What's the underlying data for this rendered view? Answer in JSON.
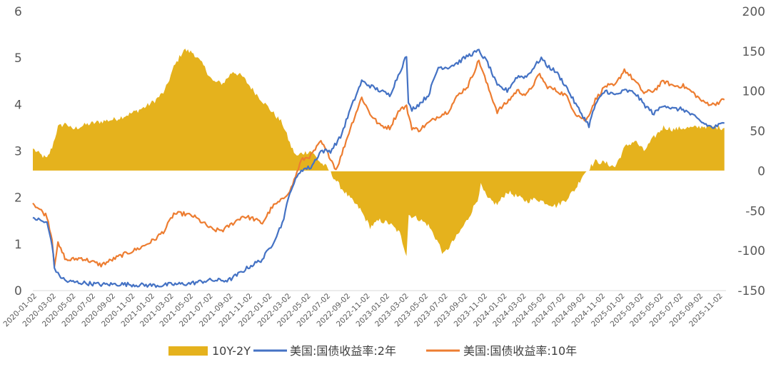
{
  "chart_data": {
    "type": "line",
    "left_axis": {
      "ticks": [
        "0",
        "1",
        "2",
        "3",
        "4",
        "5",
        "6"
      ],
      "ylim": [
        0,
        6
      ]
    },
    "right_axis": {
      "ticks": [
        "-150",
        "-100",
        "-50",
        "0",
        "50",
        "100",
        "150",
        "200"
      ],
      "ylim": [
        -150,
        200
      ]
    },
    "x_ticks": [
      "2020-01-02",
      "2020-03-02",
      "2020-05-02",
      "2020-07-02",
      "2020-09-02",
      "2020-11-02",
      "2021-01-02",
      "2021-03-02",
      "2021-05-02",
      "2021-07-02",
      "2021-09-02",
      "2021-11-02",
      "2022-01-02",
      "2022-03-02",
      "2022-05-02",
      "2022-07-02",
      "2022-09-02",
      "2022-11-02",
      "2023-01-02",
      "2023-03-02",
      "2023-05-02",
      "2023-07-02",
      "2023-09-02",
      "2023-11-02",
      "2024-01-02",
      "2024-03-02",
      "2024-05-02",
      "2024-07-02",
      "2024-09-02",
      "2024-11-02",
      "2025-01-02",
      "2025-03-02",
      "2025-05-02",
      "2025-07-02",
      "2025-09-02",
      "2025-11-02"
    ],
    "series": [
      {
        "name": "10Y-2Y",
        "type": "area",
        "axis": "right",
        "color": "#E5B21D",
        "x": [
          "2020-01-02",
          "2020-01-20",
          "2020-02-15",
          "2020-03-02",
          "2020-03-20",
          "2020-04-15",
          "2020-05-02",
          "2020-06-15",
          "2020-08-01",
          "2020-09-15",
          "2020-11-02",
          "2020-12-15",
          "2021-01-15",
          "2021-02-15",
          "2021-03-15",
          "2021-04-15",
          "2021-05-15",
          "2021-06-15",
          "2021-07-15",
          "2021-08-15",
          "2021-09-15",
          "2021-10-15",
          "2021-11-15",
          "2021-12-15",
          "2022-01-15",
          "2022-02-15",
          "2022-03-15",
          "2022-04-01",
          "2022-04-15",
          "2022-05-15",
          "2022-06-15",
          "2022-07-02",
          "2022-07-20",
          "2022-08-15",
          "2022-09-15",
          "2022-10-15",
          "2022-11-15",
          "2022-12-15",
          "2023-01-15",
          "2023-02-15",
          "2023-03-08",
          "2023-03-15",
          "2023-04-15",
          "2023-05-15",
          "2023-06-15",
          "2023-07-01",
          "2023-08-15",
          "2023-09-15",
          "2023-10-15",
          "2023-10-25",
          "2023-11-15",
          "2023-12-15",
          "2024-01-15",
          "2024-02-15",
          "2024-03-15",
          "2024-04-15",
          "2024-05-15",
          "2024-06-15",
          "2024-07-15",
          "2024-08-15",
          "2024-09-06",
          "2024-10-15",
          "2024-11-15",
          "2024-12-15",
          "2025-01-15",
          "2025-02-15",
          "2025-03-15",
          "2025-04-15",
          "2025-05-15",
          "2025-06-15",
          "2025-07-15",
          "2025-08-15",
          "2025-09-15",
          "2025-10-15",
          "2025-11-20"
        ],
        "y": [
          28,
          22,
          15,
          30,
          55,
          60,
          52,
          58,
          62,
          65,
          72,
          80,
          88,
          100,
          130,
          152,
          148,
          132,
          112,
          110,
          125,
          118,
          102,
          88,
          74,
          60,
          30,
          18,
          22,
          25,
          10,
          5,
          -5,
          -20,
          -35,
          -48,
          -70,
          -62,
          -66,
          -78,
          -105,
          -55,
          -60,
          -68,
          -90,
          -105,
          -80,
          -60,
          -35,
          -18,
          -35,
          -42,
          -26,
          -32,
          -38,
          -35,
          -40,
          -44,
          -36,
          -22,
          -5,
          12,
          10,
          5,
          30,
          38,
          25,
          42,
          55,
          52,
          54,
          54,
          56,
          55,
          54
        ]
      },
      {
        "name": "美国:国债收益率:2年",
        "type": "line",
        "axis": "left",
        "color": "#4472C4",
        "x": [
          "2020-01-02",
          "2020-02-15",
          "2020-03-02",
          "2020-03-09",
          "2020-03-20",
          "2020-04-15",
          "2020-06-01",
          "2020-08-01",
          "2020-10-01",
          "2020-12-01",
          "2021-02-01",
          "2021-03-02",
          "2021-05-01",
          "2021-07-01",
          "2021-09-01",
          "2021-10-01",
          "2021-11-01",
          "2021-12-15",
          "2022-01-15",
          "2022-02-15",
          "2022-03-15",
          "2022-04-15",
          "2022-05-15",
          "2022-06-15",
          "2022-07-15",
          "2022-08-15",
          "2022-09-15",
          "2022-10-20",
          "2022-11-15",
          "2022-12-15",
          "2023-01-15",
          "2023-02-15",
          "2023-03-08",
          "2023-03-14",
          "2023-03-25",
          "2023-04-15",
          "2023-05-15",
          "2023-06-15",
          "2023-07-15",
          "2023-08-15",
          "2023-09-15",
          "2023-10-19",
          "2023-11-15",
          "2023-12-15",
          "2024-01-15",
          "2024-02-15",
          "2024-03-15",
          "2024-04-30",
          "2024-05-15",
          "2024-06-15",
          "2024-07-15",
          "2024-08-15",
          "2024-09-25",
          "2024-10-15",
          "2024-11-15",
          "2024-12-15",
          "2025-01-15",
          "2025-02-15",
          "2025-03-15",
          "2025-04-15",
          "2025-05-15",
          "2025-06-15",
          "2025-07-15",
          "2025-08-15",
          "2025-09-15",
          "2025-10-15",
          "2025-11-20"
        ],
        "y": [
          1.57,
          1.45,
          1.0,
          0.5,
          0.35,
          0.2,
          0.17,
          0.13,
          0.14,
          0.12,
          0.11,
          0.13,
          0.15,
          0.22,
          0.22,
          0.35,
          0.5,
          0.67,
          1.0,
          1.45,
          2.2,
          2.6,
          2.65,
          3.0,
          3.0,
          3.3,
          3.9,
          4.5,
          4.4,
          4.3,
          4.2,
          4.7,
          5.05,
          4.0,
          3.9,
          4.0,
          4.2,
          4.8,
          4.8,
          4.9,
          5.05,
          5.15,
          4.9,
          4.4,
          4.3,
          4.6,
          4.6,
          5.0,
          4.85,
          4.7,
          4.4,
          4.0,
          3.55,
          4.0,
          4.3,
          4.2,
          4.3,
          4.25,
          4.0,
          3.8,
          4.0,
          3.9,
          3.9,
          3.75,
          3.6,
          3.5,
          3.6
        ]
      },
      {
        "name": "美国:国债收益率:10年",
        "type": "line",
        "axis": "left",
        "color": "#ED7D31",
        "x": [
          "2020-01-02",
          "2020-02-15",
          "2020-03-02",
          "2020-03-09",
          "2020-03-20",
          "2020-04-15",
          "2020-06-01",
          "2020-08-01",
          "2020-10-01",
          "2020-12-01",
          "2021-01-15",
          "2021-02-15",
          "2021-03-15",
          "2021-04-15",
          "2021-05-15",
          "2021-06-15",
          "2021-07-15",
          "2021-08-15",
          "2021-09-15",
          "2021-10-15",
          "2021-11-15",
          "2021-12-15",
          "2022-01-15",
          "2022-02-15",
          "2022-03-15",
          "2022-04-15",
          "2022-05-15",
          "2022-06-15",
          "2022-07-15",
          "2022-08-01",
          "2022-08-15",
          "2022-09-15",
          "2022-10-20",
          "2022-11-15",
          "2022-12-15",
          "2023-01-15",
          "2023-02-15",
          "2023-03-08",
          "2023-03-25",
          "2023-04-15",
          "2023-05-15",
          "2023-06-15",
          "2023-07-15",
          "2023-08-15",
          "2023-09-15",
          "2023-10-19",
          "2023-11-15",
          "2023-12-15",
          "2024-01-15",
          "2024-02-15",
          "2024-03-15",
          "2024-04-25",
          "2024-05-15",
          "2024-06-15",
          "2024-07-15",
          "2024-08-15",
          "2024-09-16",
          "2024-10-15",
          "2024-11-15",
          "2024-12-15",
          "2025-01-13",
          "2025-02-15",
          "2025-03-15",
          "2025-04-15",
          "2025-05-15",
          "2025-06-15",
          "2025-07-15",
          "2025-08-15",
          "2025-09-15",
          "2025-10-15",
          "2025-11-20"
        ],
        "y": [
          1.88,
          1.6,
          1.1,
          0.55,
          1.0,
          0.65,
          0.7,
          0.55,
          0.75,
          0.92,
          1.1,
          1.3,
          1.65,
          1.65,
          1.6,
          1.45,
          1.3,
          1.3,
          1.45,
          1.6,
          1.55,
          1.45,
          1.8,
          1.95,
          2.2,
          2.8,
          2.9,
          3.2,
          2.85,
          2.6,
          2.85,
          3.5,
          4.15,
          3.8,
          3.55,
          3.5,
          3.9,
          3.95,
          3.5,
          3.45,
          3.6,
          3.75,
          3.85,
          4.2,
          4.4,
          4.95,
          4.4,
          3.85,
          4.05,
          4.3,
          4.2,
          4.65,
          4.4,
          4.3,
          4.2,
          3.8,
          3.65,
          4.1,
          4.4,
          4.4,
          4.75,
          4.5,
          4.25,
          4.3,
          4.5,
          4.4,
          4.4,
          4.25,
          4.05,
          4.0,
          4.1
        ]
      }
    ],
    "legend": {
      "position": "bottom"
    }
  }
}
